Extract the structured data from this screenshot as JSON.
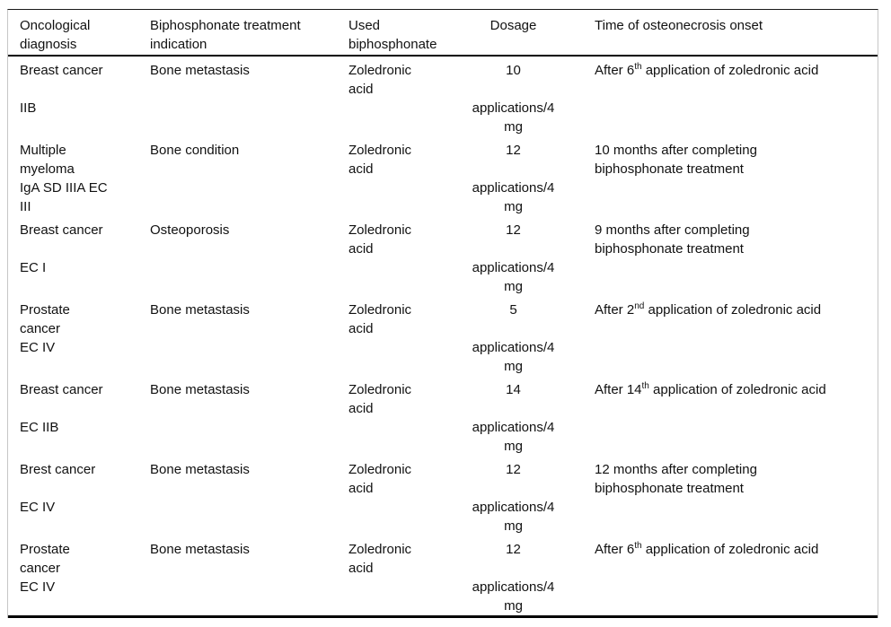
{
  "table": {
    "title_semantic": "Osteonecrosis cases and biphosphonate treatment details",
    "header": {
      "diagnosis": "Oncological diagnosis",
      "indication": "Biphosphonate treatment indication",
      "biphosphonate": "Used biphosphonate",
      "dosage": "Dosage",
      "onset": "Time of osteonecrosis onset"
    },
    "rows": [
      {
        "diagnosis": "Breast cancer\n\nIIB",
        "indication": "Bone metastasis",
        "biphosphonate": "Zoledronic\nacid",
        "dosage": "10\n\napplications/4\nmg",
        "onset_pre": "After 6",
        "onset_sup": "th",
        "onset_post": " application of zoledronic acid"
      },
      {
        "diagnosis": "Multiple\nmyeloma\nIgA SD IIIA EC\nIII",
        "indication": "Bone condition",
        "biphosphonate": "Zoledronic\nacid",
        "dosage": "12\n\napplications/4\nmg",
        "onset_pre": "10 months after completing\nbiphosphonate treatment",
        "onset_sup": "",
        "onset_post": ""
      },
      {
        "diagnosis": "Breast cancer\n\nEC I",
        "indication": "Osteoporosis",
        "biphosphonate": "Zoledronic\nacid",
        "dosage": "12\n\napplications/4\nmg",
        "onset_pre": "9 months after completing\nbiphosphonate treatment",
        "onset_sup": "",
        "onset_post": ""
      },
      {
        "diagnosis": "Prostate\ncancer\nEC IV",
        "indication": "Bone metastasis",
        "biphosphonate": "Zoledronic\nacid",
        "dosage": "5\n\napplications/4\nmg",
        "onset_pre": "After 2",
        "onset_sup": "nd",
        "onset_post": " application of zoledronic acid"
      },
      {
        "diagnosis": "Breast cancer\n\nEC IIB",
        "indication": "Bone metastasis",
        "biphosphonate": "Zoledronic\nacid",
        "dosage": "14\n\napplications/4\nmg",
        "onset_pre": "After 14",
        "onset_sup": "th",
        "onset_post": " application of zoledronic acid"
      },
      {
        "diagnosis": "Brest cancer\n\nEC IV",
        "indication": "Bone metastasis",
        "biphosphonate": "Zoledronic\nacid",
        "dosage": "12\n\napplications/4\nmg",
        "onset_pre": "12 months after completing\nbiphosphonate treatment",
        "onset_sup": "",
        "onset_post": ""
      },
      {
        "diagnosis": "Prostate\ncancer\nEC IV",
        "indication": "Bone metastasis",
        "biphosphonate": "Zoledronic\nacid",
        "dosage": "12\n\napplications/4\nmg",
        "onset_pre": "After 6",
        "onset_sup": "th",
        "onset_post": " application of zoledronic acid"
      }
    ]
  }
}
